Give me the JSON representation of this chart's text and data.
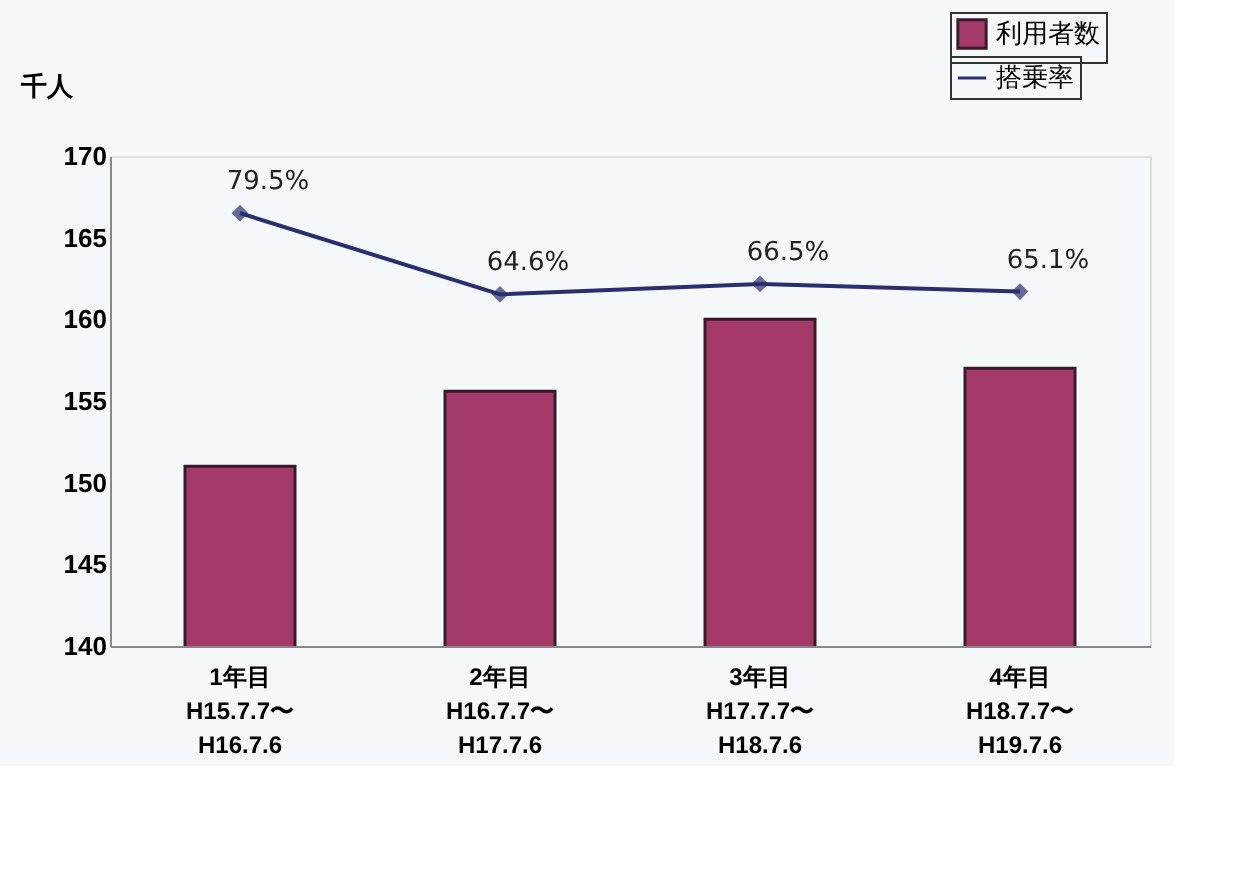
{
  "chart_data": {
    "type": "bar",
    "ylabel": "千人",
    "categories": [
      "1年目\nH15.7.7〜\nH16.7.6",
      "2年目\nH16.7.7〜\nH17.7.6",
      "3年目\nH17.7.7〜\nH18.7.6",
      "4年目\nH18.7.7〜\nH19.7.6"
    ],
    "series": [
      {
        "name": "利用者数",
        "color": "#a33a6a",
        "values": [
          151,
          155.6,
          160,
          157
        ]
      },
      {
        "name": "搭乗率",
        "color": "#2b2e6e",
        "type": "line",
        "axis": "y2",
        "values": [
          79.5,
          64.6,
          66.5,
          65.1
        ],
        "value_labels": [
          "79.5%",
          "64.6%",
          "66.5%",
          "65.1%"
        ],
        "marker": "diamond",
        "line_style": "solid"
      }
    ],
    "ylim": [
      140,
      170
    ],
    "yticks": [
      140,
      145,
      150,
      155,
      160,
      165,
      170
    ],
    "y2lim": [
      0,
      90
    ],
    "grid": false,
    "legend": "top right"
  }
}
